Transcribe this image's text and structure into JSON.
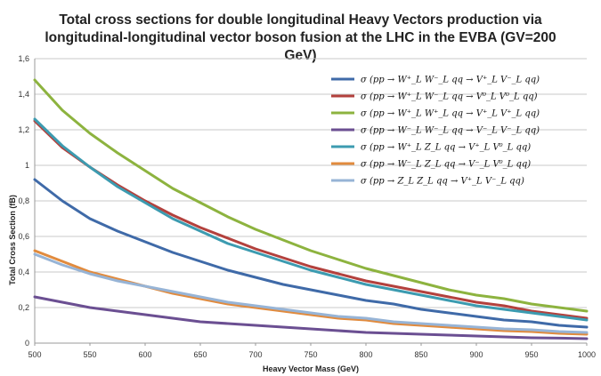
{
  "chart_data": {
    "type": "line",
    "title": "Total cross sections for double longitudinal Heavy Vectors production via\nlongitudinal-longitudinal vector boson fusion at the LHC in the EVBA (GV=200\nGeV)",
    "xlabel": "Heavy Vector Mass (GeV)",
    "ylabel": "Total Cross Section (fB)",
    "xlim": [
      500,
      1000
    ],
    "ylim": [
      0,
      1.6
    ],
    "x_ticks": [
      "500",
      "550",
      "600",
      "650",
      "700",
      "750",
      "800",
      "850",
      "900",
      "950",
      "1000"
    ],
    "y_ticks": [
      "0",
      "0,2",
      "0,4",
      "0,6",
      "0,8",
      "1",
      "1,2",
      "1,4",
      "1,6"
    ],
    "grid": "horizontal",
    "legend_position": "top-right",
    "x": [
      500,
      525,
      550,
      575,
      600,
      625,
      650,
      675,
      700,
      725,
      750,
      775,
      800,
      825,
      850,
      875,
      900,
      925,
      950,
      975,
      1000
    ],
    "series": [
      {
        "name": "σ (pp → W⁺_L W⁻_L qq → V⁺_L V⁻_L qq)",
        "color": "#3f6aa8",
        "values": [
          0.92,
          0.8,
          0.7,
          0.63,
          0.57,
          0.51,
          0.46,
          0.41,
          0.37,
          0.33,
          0.3,
          0.27,
          0.24,
          0.22,
          0.19,
          0.17,
          0.15,
          0.13,
          0.12,
          0.1,
          0.09
        ]
      },
      {
        "name": "σ (pp → W⁺_L W⁻_L qq → V⁰_L V⁰_L qq)",
        "color": "#b3413d",
        "values": [
          1.25,
          1.1,
          0.99,
          0.89,
          0.8,
          0.72,
          0.65,
          0.59,
          0.53,
          0.48,
          0.43,
          0.39,
          0.35,
          0.32,
          0.29,
          0.26,
          0.23,
          0.21,
          0.18,
          0.16,
          0.14
        ]
      },
      {
        "name": "σ (pp → W⁺_L W⁺_L qq → V⁺_L V⁺_L qq)",
        "color": "#8db33f",
        "values": [
          1.48,
          1.31,
          1.18,
          1.07,
          0.97,
          0.87,
          0.79,
          0.71,
          0.64,
          0.58,
          0.52,
          0.47,
          0.42,
          0.38,
          0.34,
          0.3,
          0.27,
          0.25,
          0.22,
          0.2,
          0.18
        ]
      },
      {
        "name": "σ (pp → W⁻_L W⁻_L qq → V⁻_L V⁻_L qq)",
        "color": "#6b4f92",
        "values": [
          0.26,
          0.23,
          0.2,
          0.18,
          0.16,
          0.14,
          0.12,
          0.11,
          0.1,
          0.09,
          0.08,
          0.07,
          0.06,
          0.055,
          0.05,
          0.045,
          0.04,
          0.035,
          0.03,
          0.028,
          0.025
        ]
      },
      {
        "name": "σ (pp → W⁺_L Z_L qq → V⁺_L V⁰_L qq)",
        "color": "#3c9bb0",
        "values": [
          1.26,
          1.11,
          0.99,
          0.88,
          0.79,
          0.7,
          0.63,
          0.56,
          0.51,
          0.46,
          0.41,
          0.37,
          0.33,
          0.3,
          0.27,
          0.24,
          0.21,
          0.19,
          0.17,
          0.15,
          0.13
        ]
      },
      {
        "name": "σ (pp → W⁻_L Z_L qq → V⁻_L V⁰_L qq)",
        "color": "#e18b3e",
        "values": [
          0.52,
          0.46,
          0.4,
          0.36,
          0.32,
          0.28,
          0.25,
          0.22,
          0.2,
          0.18,
          0.16,
          0.14,
          0.13,
          0.11,
          0.1,
          0.09,
          0.08,
          0.07,
          0.065,
          0.055,
          0.05
        ]
      },
      {
        "name": "σ (pp → Z_L Z_L qq → V⁺_L V⁻_L qq)",
        "color": "#97b4d6",
        "values": [
          0.5,
          0.44,
          0.39,
          0.35,
          0.32,
          0.29,
          0.26,
          0.23,
          0.21,
          0.19,
          0.17,
          0.15,
          0.14,
          0.12,
          0.11,
          0.1,
          0.09,
          0.08,
          0.075,
          0.065,
          0.06
        ]
      }
    ]
  }
}
